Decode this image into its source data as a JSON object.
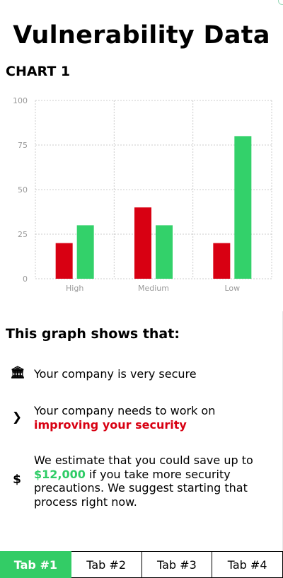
{
  "page": {
    "title": "Vulnerability Data"
  },
  "chart_section": {
    "heading": "CHART 1"
  },
  "chart_data": {
    "type": "bar",
    "categories": [
      "High",
      "Medium",
      "Low"
    ],
    "series": [
      {
        "values": [
          20,
          40,
          20
        ],
        "color": "#d80012"
      },
      {
        "values": [
          30,
          30,
          80
        ],
        "color": "#33d16a"
      }
    ],
    "ylim": [
      0,
      100
    ],
    "yticks": [
      0,
      25,
      50,
      75,
      100
    ],
    "grid": true,
    "legend": "none"
  },
  "summary": {
    "heading": "This graph shows that:",
    "items": [
      {
        "icon": "bank-icon",
        "glyph": "🏛",
        "text": "Your company is very secure"
      },
      {
        "icon": "chevron-right-icon",
        "glyph": "❯",
        "text": "Your company needs to work on",
        "emphasis": "improving your security"
      },
      {
        "icon": "dollar-icon",
        "glyph": "$",
        "text_before": "We estimate that you could save up to",
        "amount": "$12,000",
        "text_after": "if you take more security precautions. We suggest starting that process right now."
      }
    ]
  },
  "tabs": [
    {
      "label": "Tab #1",
      "active": true
    },
    {
      "label": "Tab #2",
      "active": false
    },
    {
      "label": "Tab #3",
      "active": false
    },
    {
      "label": "Tab #4",
      "active": false
    }
  ],
  "colors": {
    "accent_green": "#33cc66",
    "alert_red": "#d80012",
    "grid": "#cccccc",
    "axis_text": "#999999"
  }
}
